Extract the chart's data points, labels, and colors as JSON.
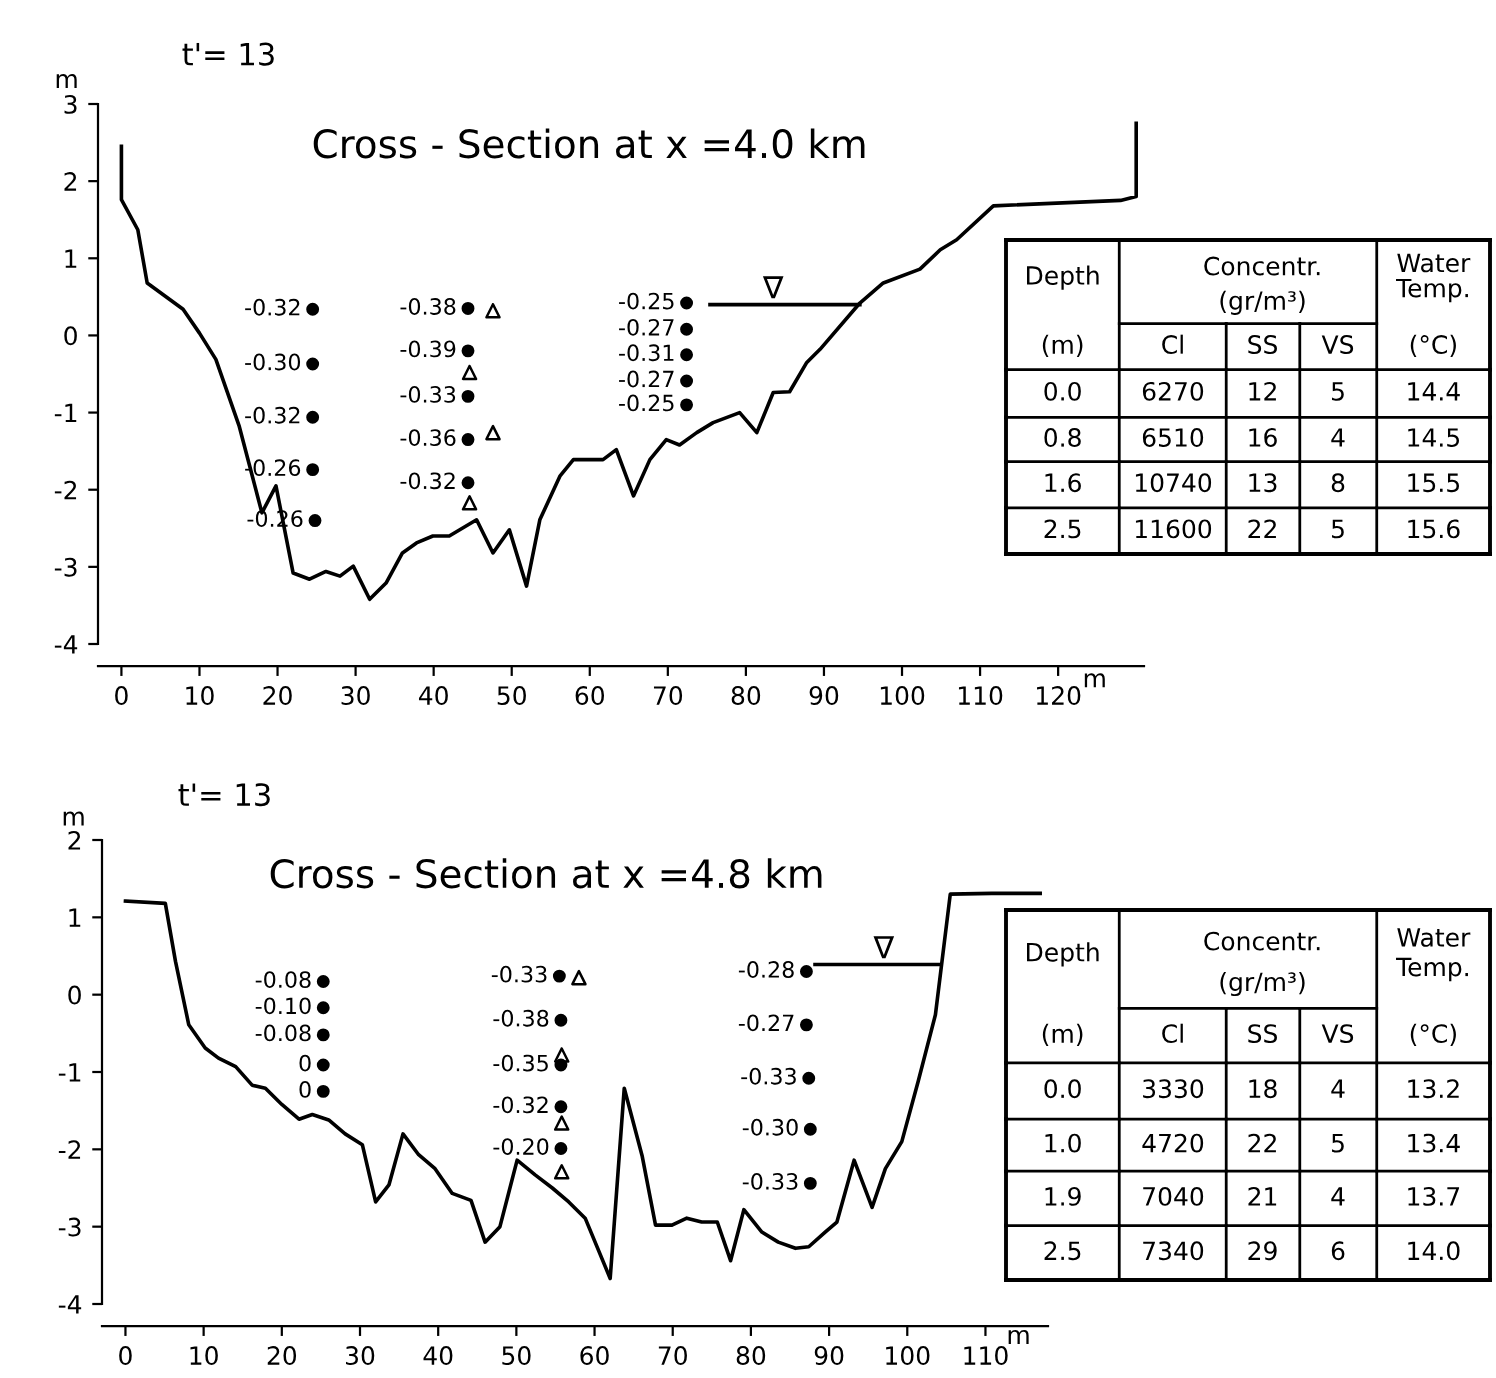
{
  "chart_data": [
    {
      "type": "line",
      "title": "t'= 13",
      "subtitle": "Cross - Section at x =4.0 km",
      "xlabel": "m",
      "ylabel": "m",
      "xlim": [
        -3,
        131
      ],
      "ylim": [
        -4,
        3
      ],
      "xticks": [
        0,
        10,
        20,
        30,
        40,
        50,
        60,
        70,
        80,
        90,
        100,
        110,
        120
      ],
      "yticks": [
        -4,
        -3,
        -2,
        -1,
        0,
        1,
        2,
        3
      ],
      "series": [
        {
          "type": "line",
          "color": "#000000",
          "x": [
            0,
            0,
            2.1,
            3.3,
            7.9,
            10,
            12.1,
            15.1,
            18,
            19.8,
            22,
            24.1,
            26.2,
            28,
            29.7,
            31.8,
            33.9,
            36,
            37.8,
            39.9,
            42,
            45.5,
            47.6,
            49.7,
            51.9,
            53.6,
            56.2,
            57.9,
            61.7,
            63.4,
            65.6,
            67.7,
            69.8,
            71.5,
            73.7,
            75.8,
            79.2,
            81.4,
            83.5,
            85.6,
            87.8,
            89.5,
            94.6,
            97.6,
            102.3,
            104.9,
            107,
            111.7,
            128,
            130,
            130
          ],
          "values": [
            2.45,
            1.76,
            1.37,
            0.68,
            0.34,
            0.03,
            -0.31,
            -1.18,
            -2.3,
            -1.95,
            -3.08,
            -3.16,
            -3.06,
            -3.12,
            -2.99,
            -3.42,
            -3.21,
            -2.82,
            -2.69,
            -2.6,
            -2.6,
            -2.39,
            -2.82,
            -2.52,
            -3.25,
            -2.39,
            -1.82,
            -1.61,
            -1.61,
            -1.48,
            -2.08,
            -1.61,
            -1.35,
            -1.42,
            -1.26,
            -1.13,
            -1.0,
            -1.26,
            -0.74,
            -0.73,
            -0.35,
            -0.18,
            0.42,
            0.68,
            0.86,
            1.11,
            1.24,
            1.68,
            1.75,
            1.8,
            2.75
          ]
        },
        {
          "type": "line",
          "color": "#000000",
          "x": [
            75.4,
            94.6
          ],
          "values": [
            0.4,
            0.4
          ]
        },
        {
          "type": "scatter",
          "marker": "circle",
          "color": "#000000",
          "x": [
            24.5,
            24.5,
            24.5,
            24.5,
            24.8,
            44.4,
            44.4,
            44.4,
            44.4,
            44.4,
            72.4,
            72.4,
            72.4,
            72.4,
            72.4
          ],
          "values": [
            0.34,
            -0.37,
            -1.06,
            -1.74,
            -2.4,
            0.35,
            -0.2,
            -0.79,
            -1.35,
            -1.91,
            0.42,
            0.08,
            -0.25,
            -0.59,
            -0.9
          ]
        },
        {
          "type": "scatter",
          "marker": "triangle",
          "color": "#000000",
          "x": [
            47.6,
            44.6,
            47.6,
            44.6
          ],
          "values": [
            0.32,
            -0.48,
            -1.26,
            -2.17
          ]
        }
      ],
      "annotations": [
        {
          "text": "-0.32",
          "x": 24.5,
          "y": 0.34
        },
        {
          "text": "-0.30",
          "x": 24.5,
          "y": -0.37
        },
        {
          "text": "-0.32",
          "x": 24.5,
          "y": -1.06
        },
        {
          "text": "-0.26",
          "x": 24.5,
          "y": -1.74
        },
        {
          "text": "-0.26",
          "x": 24.8,
          "y": -2.4
        },
        {
          "text": "-0.38",
          "x": 44.4,
          "y": 0.35
        },
        {
          "text": "-0.39",
          "x": 44.4,
          "y": -0.2
        },
        {
          "text": "-0.33",
          "x": 44.4,
          "y": -0.79
        },
        {
          "text": "-0.36",
          "x": 44.4,
          "y": -1.35
        },
        {
          "text": "-0.32",
          "x": 44.4,
          "y": -1.91
        },
        {
          "text": "-0.25",
          "x": 72.4,
          "y": 0.42
        },
        {
          "text": "-0.27",
          "x": 72.4,
          "y": 0.08
        },
        {
          "text": "-0.31",
          "x": 72.4,
          "y": -0.25
        },
        {
          "text": "-0.27",
          "x": 72.4,
          "y": -0.59
        },
        {
          "text": "-0.25",
          "x": 72.4,
          "y": -0.9
        },
        {
          "text": "∇",
          "x": 83.5,
          "y": 0.4
        }
      ]
    },
    {
      "type": "other",
      "annotations": [
        "Depth",
        "(m)",
        "Concentr.",
        "(gr/m³)",
        "Cl",
        "SS",
        "VS",
        "Water",
        "Temp.",
        "(°C)",
        "0.0",
        "6270",
        "12",
        "5",
        "14.4",
        "0.8",
        "6510",
        "16",
        "4",
        "14.5",
        "1.6",
        "10740",
        "13",
        "8",
        "15.5",
        "2.5",
        "11600",
        "22",
        "5",
        "15.6"
      ]
    },
    {
      "type": "line",
      "title": "t'= 13",
      "subtitle": "Cross - Section at x =4.8 km",
      "xlabel": "m",
      "ylabel": "m",
      "xlim": [
        -3,
        118
      ],
      "ylim": [
        -4,
        2
      ],
      "xticks": [
        0,
        10,
        20,
        30,
        40,
        50,
        60,
        70,
        80,
        90,
        100,
        110
      ],
      "yticks": [
        -4,
        -3,
        -2,
        -1,
        0,
        1,
        2
      ],
      "series": [
        {
          "type": "line",
          "color": "#000000",
          "x": [
            0,
            5.1,
            6.4,
            8.1,
            10.2,
            11.9,
            14.1,
            16.2,
            17.9,
            20,
            22.2,
            23.9,
            26,
            28.1,
            30.3,
            32,
            33.7,
            35.5,
            37.5,
            39.6,
            41.8,
            44.2,
            46,
            47.9,
            50.1,
            52.4,
            54.6,
            56.7,
            58.8,
            62,
            63.8,
            66.1,
            67.8,
            69.9,
            71.8,
            73.7,
            75.7,
            77.4,
            79.1,
            81.4,
            83.5,
            85.7,
            87.4,
            89.5,
            91,
            93.2,
            95.5,
            97.2,
            99.3,
            101.4,
            103.6,
            105.5,
            110.8,
            117
          ],
          "values": [
            1.21,
            1.18,
            0.43,
            -0.39,
            -0.69,
            -0.82,
            -0.93,
            -1.17,
            -1.21,
            -1.42,
            -1.61,
            -1.55,
            -1.62,
            -1.8,
            -1.94,
            -2.68,
            -2.46,
            -1.8,
            -2.07,
            -2.25,
            -2.57,
            -2.66,
            -3.2,
            -3.0,
            -2.14,
            -2.33,
            -2.5,
            -2.68,
            -2.89,
            -3.67,
            -1.21,
            -2.09,
            -2.98,
            -2.98,
            -2.89,
            -2.94,
            -2.94,
            -3.44,
            -2.78,
            -3.07,
            -3.2,
            -3.28,
            -3.26,
            -3.07,
            -2.94,
            -2.14,
            -2.75,
            -2.25,
            -1.9,
            -1.12,
            -0.26,
            1.3,
            1.31,
            1.31
          ]
        },
        {
          "type": "line",
          "color": "#000000",
          "x": [
            88.2,
            104
          ],
          "values": [
            0.39,
            0.39
          ]
        },
        {
          "type": "scatter",
          "marker": "circle",
          "color": "#000000",
          "x": [
            25.3,
            25.3,
            25.3,
            25.3,
            25.3,
            55.5,
            55.7,
            55.7,
            55.7,
            55.7,
            87.1,
            87.1,
            87.4,
            87.6,
            87.6
          ],
          "values": [
            0.17,
            -0.17,
            -0.52,
            -0.91,
            -1.25,
            0.24,
            -0.33,
            -0.91,
            -1.45,
            -1.99,
            0.3,
            -0.39,
            -1.08,
            -1.74,
            -2.44
          ]
        },
        {
          "type": "scatter",
          "marker": "triangle",
          "color": "#000000",
          "x": [
            58,
            55.8,
            55.8,
            55.8
          ],
          "values": [
            0.22,
            -0.78,
            -1.66,
            -2.29
          ]
        }
      ],
      "annotations": [
        {
          "text": "-0.08",
          "x": 25.3,
          "y": 0.17
        },
        {
          "text": "-0.10",
          "x": 25.3,
          "y": -0.17
        },
        {
          "text": "-0.08",
          "x": 25.3,
          "y": -0.52
        },
        {
          "text": "0",
          "x": 25.3,
          "y": -0.91
        },
        {
          "text": "0",
          "x": 25.3,
          "y": -1.25
        },
        {
          "text": "-0.33",
          "x": 55.5,
          "y": 0.24
        },
        {
          "text": "-0.38",
          "x": 55.7,
          "y": -0.33
        },
        {
          "text": "-0.35",
          "x": 55.7,
          "y": -0.91
        },
        {
          "text": "-0.32",
          "x": 55.7,
          "y": -1.45
        },
        {
          "text": "-0.20",
          "x": 55.7,
          "y": -1.99
        },
        {
          "text": "-0.28",
          "x": 87.1,
          "y": 0.3
        },
        {
          "text": "-0.27",
          "x": 87.1,
          "y": -0.39
        },
        {
          "text": "-0.33",
          "x": 87.4,
          "y": -1.08
        },
        {
          "text": "-0.30",
          "x": 87.6,
          "y": -1.74
        },
        {
          "text": "-0.33",
          "x": 87.6,
          "y": -2.44
        },
        {
          "text": "∇",
          "x": 97,
          "y": 0.39
        }
      ]
    },
    {
      "type": "other",
      "annotations": [
        "Depth",
        "(m)",
        "Concentr.",
        "(gr/m³)",
        "Cl",
        "SS",
        "VS",
        "Water",
        "Temp.",
        "(°C)",
        "0.0",
        "3330",
        "18",
        "4",
        "13.2",
        "1.0",
        "4720",
        "22",
        "5",
        "13.4",
        "1.9",
        "7040",
        "21",
        "4",
        "13.7",
        "2.5",
        "7340",
        "29",
        "6",
        "14.0"
      ]
    }
  ]
}
